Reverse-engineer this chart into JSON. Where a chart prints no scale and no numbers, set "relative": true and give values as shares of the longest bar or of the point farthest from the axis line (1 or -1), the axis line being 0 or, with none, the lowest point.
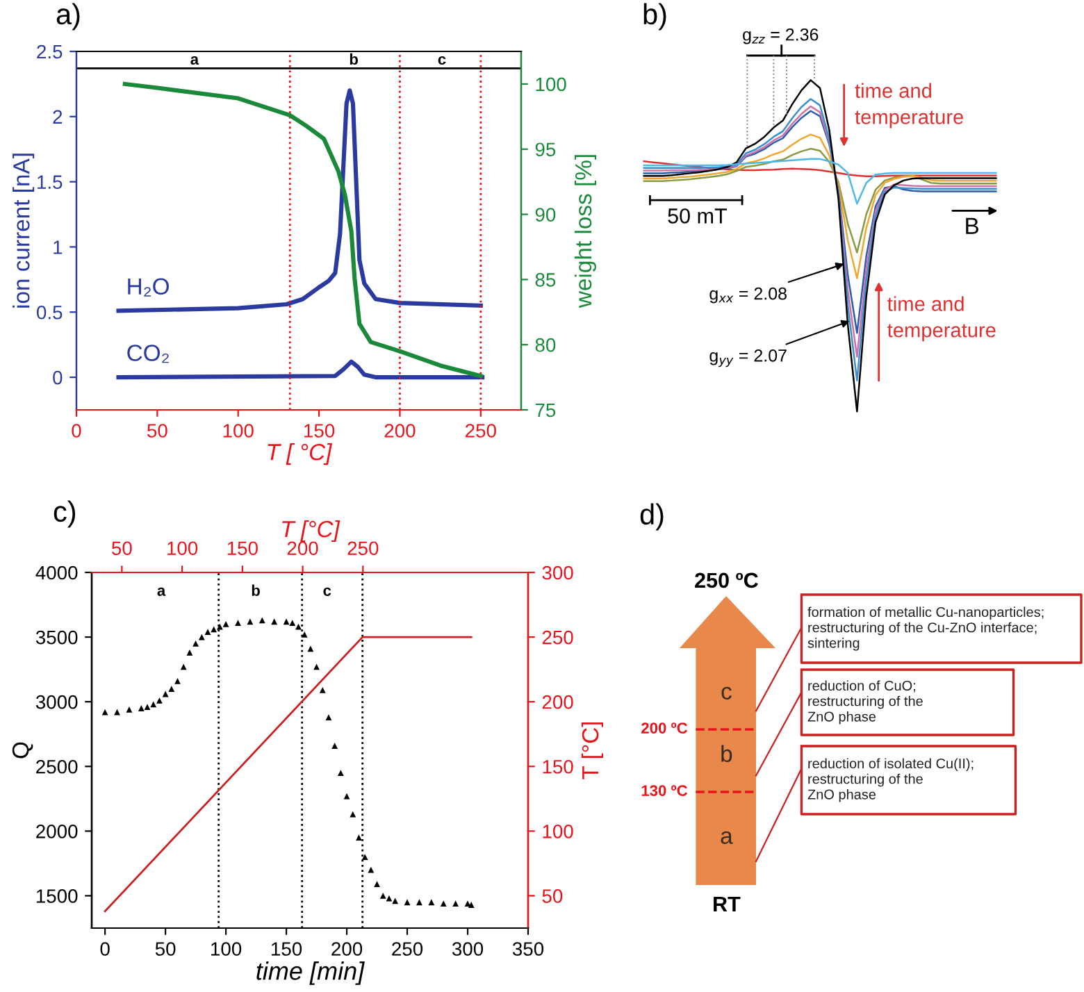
{
  "chart_data": [
    {
      "type": "line",
      "title": "a)",
      "xlabel": "T [ °C]",
      "ylabel": "ion current [nA]",
      "y2label": "weight loss [%]",
      "xlim": [
        0,
        275
      ],
      "xticks": [
        0,
        50,
        100,
        150,
        200,
        250
      ],
      "ylim": [
        -0.25,
        2.5
      ],
      "yticks": [
        0,
        0.5,
        1,
        1.5,
        2,
        2.5
      ],
      "y2lim": [
        75,
        102.5
      ],
      "y2ticks": [
        75,
        80,
        85,
        90,
        95,
        100
      ],
      "series": [
        {
          "name": "H₂O",
          "color": "#2b3a9e",
          "x": [
            26,
            100,
            130,
            140,
            150,
            156,
            160,
            163,
            165,
            167,
            169,
            171,
            173,
            175,
            178,
            185,
            200,
            250
          ],
          "values": [
            0.51,
            0.53,
            0.56,
            0.6,
            0.69,
            0.74,
            0.8,
            1.1,
            1.6,
            2.1,
            2.2,
            2.1,
            1.5,
            0.9,
            0.72,
            0.6,
            0.57,
            0.55
          ]
        },
        {
          "name": "CO₂",
          "color": "#2b3a9e",
          "x": [
            26,
            160,
            165,
            170,
            174,
            178,
            185,
            251
          ],
          "values": [
            0,
            0.01,
            0.06,
            0.12,
            0.08,
            0.02,
            0,
            0
          ]
        },
        {
          "color": "#1a8a3a",
          "axis": "y2",
          "x": [
            30,
            50,
            100,
            132,
            142,
            153,
            162,
            166,
            170,
            172,
            175,
            182,
            200,
            225,
            250
          ],
          "values": [
            100,
            99.7,
            98.9,
            97.6,
            96.8,
            95.8,
            93.3,
            91.5,
            88.7,
            85.1,
            81.6,
            80.2,
            79.5,
            78.4,
            77.6
          ]
        }
      ],
      "ref_lines": [
        {
          "axis": "y",
          "value": 2.37,
          "color": "#000000",
          "line_style": "solid"
        },
        {
          "axis": "x",
          "value": 132,
          "color": "#e8141c",
          "line_style": "dotted"
        },
        {
          "axis": "x",
          "value": 200,
          "color": "#e8141c",
          "line_style": "dotted"
        },
        {
          "axis": "x",
          "value": 250,
          "color": "#e8141c",
          "line_style": "dotted"
        }
      ],
      "annotations": [
        "a",
        "b",
        "c"
      ]
    },
    {
      "type": "line",
      "title": "b)",
      "relative": true,
      "categories": [
        null,
        null,
        null,
        null,
        null,
        null,
        null,
        null,
        null,
        null,
        null,
        null,
        null,
        null,
        null,
        null,
        null,
        null,
        null,
        null,
        null,
        null,
        null,
        null,
        null,
        null,
        null,
        null,
        null,
        null,
        null,
        null,
        null,
        null,
        null,
        null,
        null,
        null,
        null
      ],
      "series": [
        {
          "color": "#e03030",
          "values": [
            0.755,
            0.752,
            0.749,
            0.746,
            0.743,
            0.74,
            0.738,
            0.735,
            0.733,
            0.731,
            0.729,
            0.728,
            0.728,
            0.729,
            0.73,
            0.732,
            0.733,
            0.732,
            0.731,
            0.728,
            0.724,
            0.72,
            0.715,
            0.712,
            0.71,
            0.71,
            0.711,
            0.712,
            0.712,
            0.712,
            0.712,
            0.712,
            0.712,
            0.712,
            0.712,
            0.712,
            0.712,
            0.712,
            0.712
          ]
        },
        {
          "color": "#8a9a40",
          "values": [
            0.695,
            0.695,
            0.695,
            0.697,
            0.699,
            0.701,
            0.704,
            0.707,
            0.711,
            0.716,
            0.726,
            0.738,
            0.742,
            0.747,
            0.755,
            0.76,
            0.774,
            0.785,
            0.793,
            0.787,
            0.753,
            0.692,
            0.567,
            0.48,
            0.595,
            0.669,
            0.697,
            0.706,
            0.71,
            0.712,
            0.7,
            0.69,
            0.688,
            0.688,
            0.688,
            0.688,
            0.688,
            0.688,
            0.688
          ]
        },
        {
          "color": "#f0a830",
          "values": [
            0.703,
            0.703,
            0.703,
            0.705,
            0.707,
            0.709,
            0.712,
            0.715,
            0.719,
            0.723,
            0.732,
            0.749,
            0.755,
            0.764,
            0.776,
            0.785,
            0.805,
            0.823,
            0.836,
            0.826,
            0.773,
            0.684,
            0.517,
            0.402,
            0.554,
            0.653,
            0.69,
            0.702,
            0.708,
            0.711,
            0.705,
            0.698,
            0.696,
            0.696,
            0.696,
            0.696,
            0.696,
            0.696,
            0.696
          ]
        },
        {
          "color": "#2a5ea8",
          "values": [
            0.719,
            0.719,
            0.719,
            0.721,
            0.722,
            0.724,
            0.726,
            0.728,
            0.731,
            0.734,
            0.74,
            0.769,
            0.778,
            0.792,
            0.811,
            0.825,
            0.858,
            0.886,
            0.907,
            0.891,
            0.806,
            0.666,
            0.413,
            0.237,
            0.469,
            0.619,
            0.675,
            0.68,
            0.67,
            0.666,
            0.664,
            0.664,
            0.664,
            0.664,
            0.664,
            0.664,
            0.664,
            0.664,
            0.664
          ]
        },
        {
          "color": "#d070a8",
          "values": [
            0.727,
            0.727,
            0.727,
            0.728,
            0.728,
            0.728,
            0.729,
            0.73,
            0.733,
            0.736,
            0.742,
            0.772,
            0.783,
            0.798,
            0.818,
            0.833,
            0.868,
            0.898,
            0.921,
            0.903,
            0.813,
            0.659,
            0.367,
            0.165,
            0.432,
            0.605,
            0.669,
            0.685,
            0.683,
            0.681,
            0.68,
            0.68,
            0.68,
            0.68,
            0.68,
            0.68,
            0.68,
            0.68,
            0.68
          ]
        },
        {
          "color": "#3a8fd0",
          "values": [
            0.735,
            0.735,
            0.735,
            0.735,
            0.735,
            0.735,
            0.735,
            0.736,
            0.737,
            0.739,
            0.745,
            0.779,
            0.79,
            0.807,
            0.829,
            0.846,
            0.885,
            0.919,
            0.943,
            0.924,
            0.823,
            0.651,
            0.322,
            0.093,
            0.395,
            0.59,
            0.663,
            0.676,
            0.674,
            0.673,
            0.672,
            0.672,
            0.672,
            0.672,
            0.672,
            0.672,
            0.672,
            0.672,
            0.672
          ]
        },
        {
          "color": "#000000",
          "values": [
            0.711,
            0.711,
            0.711,
            0.713,
            0.716,
            0.719,
            0.722,
            0.726,
            0.731,
            0.738,
            0.752,
            0.794,
            0.808,
            0.829,
            0.857,
            0.878,
            0.927,
            0.969,
            1.0,
            0.976,
            0.85,
            0.641,
            0.263,
            0,
            0.347,
            0.571,
            0.655,
            0.683,
            0.697,
            0.703,
            0.704,
            0.704,
            0.704,
            0.704,
            0.704,
            0.704,
            0.704,
            0.704,
            0.704
          ]
        },
        {
          "color": "#50b8e8",
          "values": [
            0.743,
            0.743,
            0.743,
            0.743,
            0.743,
            0.743,
            0.743,
            0.743,
            0.743,
            0.744,
            0.746,
            0.748,
            0.75,
            0.752,
            0.754,
            0.756,
            0.758,
            0.76,
            0.762,
            0.762,
            0.755,
            0.745,
            0.72,
            0.627,
            0.69,
            0.715,
            0.718,
            0.72,
            0.72,
            0.72,
            0.72,
            0.72,
            0.72,
            0.72,
            0.72,
            0.72,
            0.72,
            0.72,
            0.72
          ]
        }
      ],
      "annotations": [
        "g$_{zz}$ = 2.36",
        "time and\ntemperature",
        "50 mT",
        "B",
        "g$_{xx}$ = 2.08",
        "g$_{yy}$ = 2.07",
        "time and\ntemperature"
      ]
    },
    {
      "type": "scatter",
      "title": "c)",
      "xlabel": "time [min]",
      "ylabel": "Q",
      "y2label": "T [°C]",
      "x2label": "T [°C]",
      "xlim": [
        -11,
        350
      ],
      "xticks": [
        0,
        50,
        100,
        150,
        200,
        250,
        300,
        350
      ],
      "ylim": [
        1250,
        4000
      ],
      "yticks": [
        1500,
        2000,
        2500,
        3000,
        3500,
        4000
      ],
      "y2lim": [
        25,
        300
      ],
      "y2ticks": [
        50,
        100,
        150,
        200,
        250,
        300
      ],
      "x2lim": [
        25,
        387
      ],
      "x2ticks": [
        50,
        100,
        150,
        200,
        250
      ],
      "series": [
        {
          "color": "#000000",
          "marker": "triangle",
          "x": [
            0,
            10,
            20,
            30,
            35,
            40,
            45,
            50,
            55,
            60,
            65,
            70,
            75,
            80,
            85,
            90,
            95,
            100,
            110,
            120,
            130,
            140,
            150,
            155,
            160,
            165,
            170,
            175,
            180,
            185,
            190,
            195,
            200,
            205,
            210,
            215,
            220,
            225,
            230,
            235,
            240,
            250,
            260,
            270,
            280,
            290,
            300,
            303
          ],
          "values": [
            2920,
            2920,
            2940,
            2950,
            2960,
            2980,
            3010,
            3060,
            3100,
            3160,
            3270,
            3380,
            3450,
            3500,
            3540,
            3560,
            3580,
            3600,
            3610,
            3620,
            3630,
            3620,
            3620,
            3610,
            3580,
            3520,
            3410,
            3270,
            3090,
            2880,
            2660,
            2450,
            2270,
            2130,
            1950,
            1800,
            1700,
            1590,
            1500,
            1480,
            1460,
            1450,
            1450,
            1450,
            1440,
            1440,
            1440,
            1430
          ]
        },
        {
          "type": "line",
          "color": "#cc1f1f",
          "axis": "y2",
          "x": [
            0,
            213,
            303
          ],
          "values": [
            38,
            250,
            250
          ]
        }
      ],
      "ref_lines": [
        {
          "axis": "x",
          "value": 94,
          "color": "#000000",
          "line_style": "dotted"
        },
        {
          "axis": "x",
          "value": 163,
          "color": "#000000",
          "line_style": "dotted"
        },
        {
          "axis": "x",
          "value": 213,
          "color": "#000000",
          "line_style": "dotted"
        }
      ],
      "annotations": [
        "a",
        "b",
        "c"
      ]
    },
    {
      "type": "other",
      "title": "d)",
      "annotations": [
        "250 ºC",
        "c",
        "200 ºC",
        "b",
        "130 ºC",
        "a",
        "RT",
        "formation of metallic Cu-nanoparticles;\nrestructuring of the Cu-ZnO interface;\nsintering",
        "reduction of CuO;\nrestructuring of the\nZnO phase",
        "reduction of isolated Cu(II);\nrestructuring of the\nZnO phase"
      ]
    }
  ]
}
